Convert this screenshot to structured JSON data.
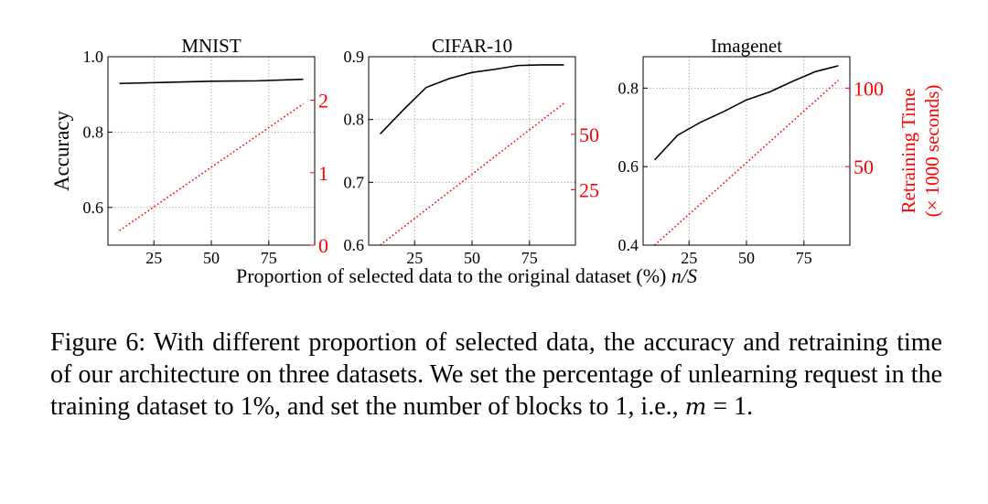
{
  "figure": {
    "xlabel_text": "Proportion of selected data to the original dataset (%) ",
    "xlabel_var": "n/S",
    "left_ylabel": "Accuracy",
    "right_ylabel_line1": "Retraining Time",
    "right_ylabel_line2": "(× 1000 seconds)"
  },
  "colors": {
    "accuracy": "#000000",
    "time": "#ff0000",
    "grid": "#b0b0b0"
  },
  "chart_data": [
    {
      "type": "line",
      "title": "MNIST",
      "xlabel": "Proportion of selected data to the original dataset (%) n/S",
      "ylabel": "Accuracy",
      "y2label": "Retraining Time (× 1000 seconds)",
      "xlim": [
        5,
        95
      ],
      "ylim": [
        0.5,
        1.0
      ],
      "y2lim": [
        0,
        2.6
      ],
      "xticks": [
        25,
        50,
        75
      ],
      "xtick_labels": [
        "25",
        "50",
        "75"
      ],
      "yticks": [
        0.6,
        0.8,
        1.0
      ],
      "ytick_labels": [
        "0.6",
        "0.8",
        "1.0"
      ],
      "y2ticks": [
        0,
        1,
        2
      ],
      "y2tick_labels": [
        "0",
        "1",
        "2"
      ],
      "grid": true,
      "series": [
        {
          "name": "Accuracy",
          "axis": "left",
          "style": "solid",
          "x": [
            10,
            30,
            50,
            70,
            90
          ],
          "y": [
            0.929,
            0.932,
            0.935,
            0.936,
            0.94
          ]
        },
        {
          "name": "Retraining Time",
          "axis": "right",
          "style": "dotted",
          "x": [
            10,
            90
          ],
          "y": [
            0.2,
            1.95
          ]
        }
      ]
    },
    {
      "type": "line",
      "title": "CIFAR-10",
      "xlabel": "Proportion of selected data to the original dataset (%) n/S",
      "ylabel": "Accuracy",
      "y2label": "Retraining Time (× 1000 seconds)",
      "xlim": [
        5,
        95
      ],
      "ylim": [
        0.6,
        0.9
      ],
      "y2lim": [
        0,
        85
      ],
      "xticks": [
        25,
        50,
        75
      ],
      "xtick_labels": [
        "25",
        "50",
        "75"
      ],
      "yticks": [
        0.6,
        0.7,
        0.8,
        0.9
      ],
      "ytick_labels": [
        "0.6",
        "0.7",
        "0.8",
        "0.9"
      ],
      "y2ticks": [
        25,
        50
      ],
      "y2tick_labels": [
        "25",
        "50"
      ],
      "grid": true,
      "series": [
        {
          "name": "Accuracy",
          "axis": "left",
          "style": "solid",
          "x": [
            10,
            20,
            30,
            40,
            50,
            60,
            70,
            80,
            90
          ],
          "y": [
            0.777,
            0.815,
            0.851,
            0.865,
            0.875,
            0.88,
            0.886,
            0.887,
            0.887
          ]
        },
        {
          "name": "Retraining Time",
          "axis": "right",
          "style": "dotted",
          "x": [
            10,
            90
          ],
          "y": [
            0,
            64
          ]
        }
      ]
    },
    {
      "type": "line",
      "title": "Imagenet",
      "xlabel": "Proportion of selected data to the original dataset (%) n/S",
      "ylabel": "Accuracy",
      "y2label": "Retraining Time (× 1000 seconds)",
      "xlim": [
        5,
        95
      ],
      "ylim": [
        0.4,
        0.88
      ],
      "y2lim": [
        0,
        120
      ],
      "xticks": [
        25,
        50,
        75
      ],
      "xtick_labels": [
        "25",
        "50",
        "75"
      ],
      "yticks": [
        0.4,
        0.6,
        0.8
      ],
      "ytick_labels": [
        "0.4",
        "0.6",
        "0.8"
      ],
      "y2ticks": [
        50,
        100
      ],
      "y2tick_labels": [
        "50",
        "100"
      ],
      "grid": true,
      "series": [
        {
          "name": "Accuracy",
          "axis": "left",
          "style": "solid",
          "x": [
            10,
            20,
            30,
            40,
            50,
            60,
            70,
            80,
            90
          ],
          "y": [
            0.617,
            0.68,
            0.713,
            0.74,
            0.77,
            0.79,
            0.817,
            0.842,
            0.857
          ]
        },
        {
          "name": "Retraining Time",
          "axis": "right",
          "style": "dotted",
          "x": [
            10,
            90
          ],
          "y": [
            0,
            105
          ]
        }
      ]
    }
  ],
  "caption": {
    "text": "Figure 6: With different proportion of selected data, the accuracy and retraining time of our architecture on three datasets. We set the percentage of unlearning request in the training dataset to 1%, and set the number of blocks to 1, i.e., ",
    "math_var": "m",
    "math_rest": " = 1",
    "end": "."
  }
}
